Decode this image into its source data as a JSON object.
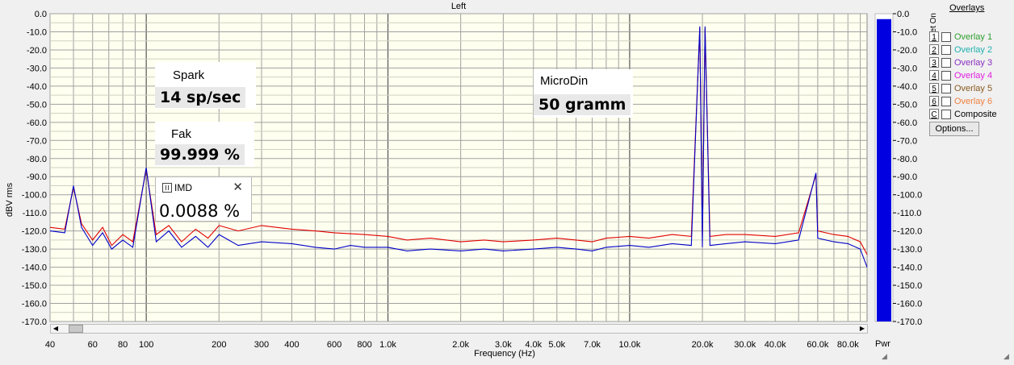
{
  "window": {
    "title": "Left"
  },
  "chart_data": {
    "type": "line",
    "title": "Left",
    "xlabel": "Frequency (Hz)",
    "ylabel": "dBV rms",
    "x_scale": "log",
    "xlim": [
      40,
      96000
    ],
    "ylim": [
      -170,
      0
    ],
    "x_ticks": [
      {
        "v": 40,
        "label": "40"
      },
      {
        "v": 60,
        "label": "60"
      },
      {
        "v": 80,
        "label": "80"
      },
      {
        "v": 100,
        "label": "100"
      },
      {
        "v": 200,
        "label": "200"
      },
      {
        "v": 300,
        "label": "300"
      },
      {
        "v": 400,
        "label": "400"
      },
      {
        "v": 600,
        "label": "600"
      },
      {
        "v": 800,
        "label": "800"
      },
      {
        "v": 1000,
        "label": "1.0k"
      },
      {
        "v": 2000,
        "label": "2.0k"
      },
      {
        "v": 3000,
        "label": "3.0k"
      },
      {
        "v": 4000,
        "label": "4.0k"
      },
      {
        "v": 5000,
        "label": "5.0k"
      },
      {
        "v": 7000,
        "label": "7.0k"
      },
      {
        "v": 10000,
        "label": "10.0k"
      },
      {
        "v": 20000,
        "label": "20.0k"
      },
      {
        "v": 30000,
        "label": "30.0k"
      },
      {
        "v": 40000,
        "label": "40.0k"
      },
      {
        "v": 60000,
        "label": "60.0k"
      },
      {
        "v": 80000,
        "label": "80.0k"
      }
    ],
    "y_ticks": [
      {
        "v": 0,
        "label": "0.0"
      },
      {
        "v": -10,
        "label": "-10.0"
      },
      {
        "v": -20,
        "label": "-20.0"
      },
      {
        "v": -30,
        "label": "-30.0"
      },
      {
        "v": -40,
        "label": "-40.0"
      },
      {
        "v": -50,
        "label": "-50.0"
      },
      {
        "v": -60,
        "label": "-60.0"
      },
      {
        "v": -70,
        "label": "-70.0"
      },
      {
        "v": -80,
        "label": "-80.0"
      },
      {
        "v": -90,
        "label": "-90.0"
      },
      {
        "v": -100,
        "label": "-100.0"
      },
      {
        "v": -110,
        "label": "-110.0"
      },
      {
        "v": -120,
        "label": "-120.0"
      },
      {
        "v": -130,
        "label": "-130.0"
      },
      {
        "v": -140,
        "label": "-140.0"
      },
      {
        "v": -150,
        "label": "-150.0"
      },
      {
        "v": -160,
        "label": "-160.0"
      },
      {
        "v": -170,
        "label": "-170.0"
      }
    ],
    "grid": true,
    "series": [
      {
        "color": "#e00000",
        "points": [
          [
            40,
            -118
          ],
          [
            46,
            -119
          ],
          [
            50,
            -96
          ],
          [
            54,
            -116
          ],
          [
            60,
            -125
          ],
          [
            66,
            -118
          ],
          [
            72,
            -128
          ],
          [
            80,
            -122
          ],
          [
            88,
            -126
          ],
          [
            100,
            -86
          ],
          [
            110,
            -122
          ],
          [
            124,
            -117
          ],
          [
            140,
            -126
          ],
          [
            160,
            -119
          ],
          [
            180,
            -124
          ],
          [
            200,
            -117
          ],
          [
            240,
            -120
          ],
          [
            300,
            -117
          ],
          [
            400,
            -119
          ],
          [
            500,
            -120
          ],
          [
            600,
            -121
          ],
          [
            800,
            -122
          ],
          [
            1000,
            -123
          ],
          [
            1200,
            -125
          ],
          [
            1500,
            -124
          ],
          [
            2000,
            -126
          ],
          [
            2500,
            -125
          ],
          [
            3000,
            -126
          ],
          [
            4000,
            -125
          ],
          [
            5000,
            -124
          ],
          [
            6000,
            -125
          ],
          [
            7000,
            -126
          ],
          [
            8000,
            -124
          ],
          [
            10000,
            -123
          ],
          [
            12000,
            -124
          ],
          [
            15000,
            -122
          ],
          [
            18000,
            -123
          ],
          [
            19500,
            -8
          ],
          [
            20000,
            -124
          ],
          [
            20500,
            -8
          ],
          [
            21500,
            -123
          ],
          [
            25000,
            -122
          ],
          [
            30000,
            -122
          ],
          [
            40000,
            -123
          ],
          [
            50000,
            -121
          ],
          [
            59000,
            -89
          ],
          [
            60000,
            -120
          ],
          [
            70000,
            -122
          ],
          [
            80000,
            -123
          ],
          [
            90000,
            -126
          ],
          [
            96000,
            -133
          ]
        ]
      },
      {
        "color": "#0000c8",
        "points": [
          [
            40,
            -120
          ],
          [
            46,
            -121
          ],
          [
            50,
            -95
          ],
          [
            54,
            -118
          ],
          [
            60,
            -128
          ],
          [
            66,
            -121
          ],
          [
            72,
            -130
          ],
          [
            80,
            -125
          ],
          [
            88,
            -129
          ],
          [
            100,
            -85
          ],
          [
            110,
            -126
          ],
          [
            124,
            -120
          ],
          [
            140,
            -129
          ],
          [
            160,
            -123
          ],
          [
            180,
            -129
          ],
          [
            200,
            -122
          ],
          [
            240,
            -128
          ],
          [
            300,
            -126
          ],
          [
            400,
            -127
          ],
          [
            500,
            -129
          ],
          [
            600,
            -130
          ],
          [
            700,
            -128
          ],
          [
            800,
            -129
          ],
          [
            1000,
            -129
          ],
          [
            1200,
            -131
          ],
          [
            1500,
            -130
          ],
          [
            2000,
            -131
          ],
          [
            2500,
            -130
          ],
          [
            3000,
            -131
          ],
          [
            4000,
            -130
          ],
          [
            5000,
            -129
          ],
          [
            6000,
            -130
          ],
          [
            7000,
            -131
          ],
          [
            8000,
            -129
          ],
          [
            10000,
            -128
          ],
          [
            12000,
            -129
          ],
          [
            15000,
            -127
          ],
          [
            18000,
            -128
          ],
          [
            19500,
            -7
          ],
          [
            20000,
            -129
          ],
          [
            20500,
            -7
          ],
          [
            21500,
            -128
          ],
          [
            25000,
            -127
          ],
          [
            30000,
            -126
          ],
          [
            40000,
            -127
          ],
          [
            50000,
            -125
          ],
          [
            59000,
            -88
          ],
          [
            60000,
            -124
          ],
          [
            70000,
            -126
          ],
          [
            80000,
            -127
          ],
          [
            90000,
            -130
          ],
          [
            96000,
            -140
          ]
        ]
      }
    ],
    "level_meter": {
      "label": "Pwr",
      "value_dbv": -3,
      "ylim": [
        -170,
        0
      ],
      "y_ticks": [
        "0.0",
        "-10.0",
        "-20.0",
        "-30.0",
        "-40.0",
        "-50.0",
        "-60.0",
        "-70.0",
        "-80.0",
        "-90.0",
        "-100.0",
        "-110.0",
        "-120.0",
        "-130.0",
        "-140.0",
        "-150.0",
        "-160.0",
        "-170.0"
      ],
      "color": "#0000e0"
    }
  },
  "readouts": {
    "spark": {
      "label": "Spark",
      "value": "14 sp/sec"
    },
    "fak": {
      "label": "Fak",
      "value": "99.999 %"
    },
    "microdin": {
      "label": "MicroDin",
      "value": "50 gramm"
    },
    "imd": {
      "title": "IMD",
      "value": "0.0088 %",
      "close": "✕"
    }
  },
  "overlays": {
    "header": "Overlays",
    "set_on": "Set On",
    "items": [
      {
        "num": "1",
        "name": "Overlay 1",
        "color": "#2e9e2e"
      },
      {
        "num": "2",
        "name": "Overlay 2",
        "color": "#1fb0b0"
      },
      {
        "num": "3",
        "name": "Overlay 3",
        "color": "#8a2fbf"
      },
      {
        "num": "4",
        "name": "Overlay 4",
        "color": "#e020e0"
      },
      {
        "num": "5",
        "name": "Overlay 5",
        "color": "#8a5a20"
      },
      {
        "num": "6",
        "name": "Overlay 6",
        "color": "#f08040"
      },
      {
        "num": "C",
        "name": "Composite",
        "color": "#000000"
      }
    ],
    "options_label": "Options..."
  }
}
